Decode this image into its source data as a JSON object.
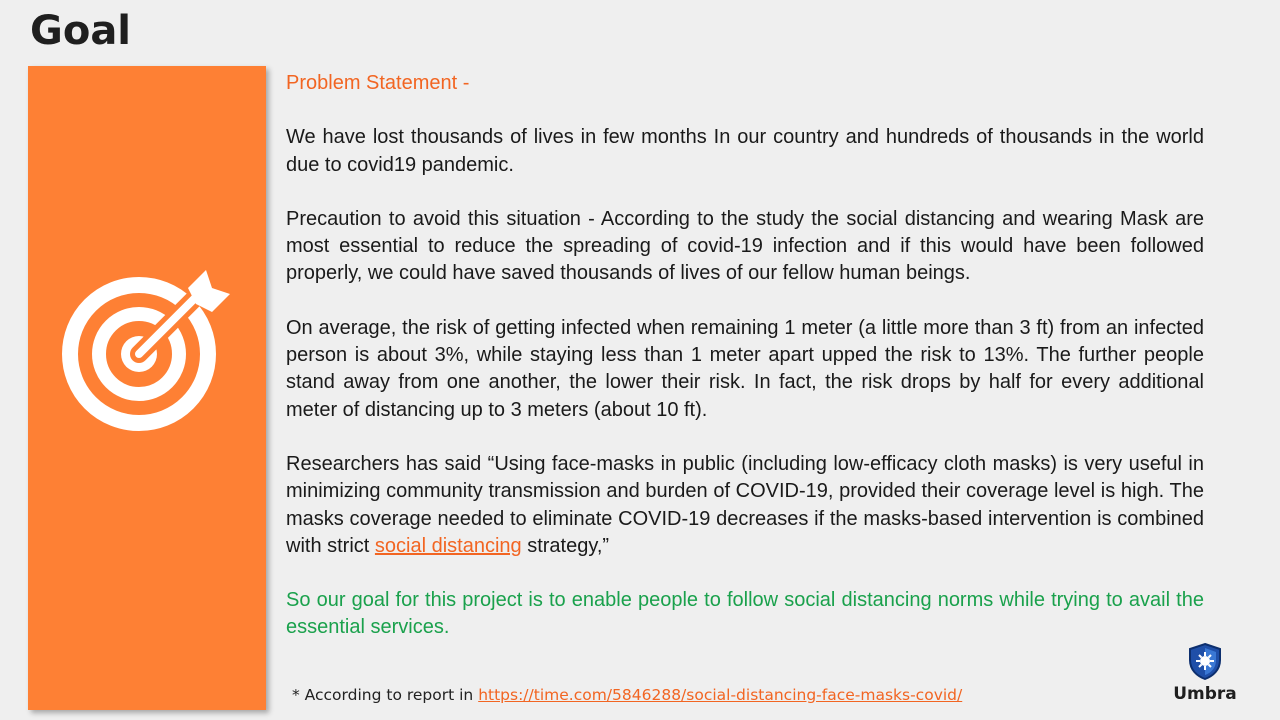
{
  "title": "Goal",
  "sidebar": {
    "icon": "target-arrow-icon",
    "color": "#fe8034"
  },
  "content": {
    "heading": "Problem Statement -",
    "para1": "We have lost thousands of lives in few months In our country and hundreds of thousands in the world due to covid19 pandemic.",
    "para2": "Precaution to avoid this situation - According to the study the social distancing  and wearing Mask are  most essential to reduce the spreading of covid-19 infection and if this would have been followed properly, we could have saved thousands of lives of our fellow human beings.",
    "para3": "On average, the risk of getting infected when remaining 1 meter (a little more than 3 ft) from an infected person is about 3%, while staying less than 1 meter apart upped the risk to 13%. The further people stand away from one another, the lower their risk. In fact, the risk drops by half for every additional meter of distancing up to 3 meters (about 10 ft).",
    "para4_before": "Researchers has said  “Using face-masks in public (including low-efficacy cloth masks) is very useful in minimizing community transmission and burden of COVID-19, provided their coverage level is high. The masks coverage needed to eliminate COVID-19 decreases if the masks-based intervention is combined with strict ",
    "para4_link": "social distancing",
    "para4_after": " strategy,”",
    "goal": "So our goal for this project is to enable people to follow social distancing norms while trying to avail the essential services."
  },
  "footnote": {
    "prefix": "* According to report in ",
    "link": "https://time.com/5846288/social-distancing-face-masks-covid/"
  },
  "logo": {
    "name": "Umbra",
    "icon": "shield-virus-icon"
  },
  "colors": {
    "accent": "#f26522",
    "goal": "#1aa14c",
    "sidebar": "#fe8034"
  }
}
